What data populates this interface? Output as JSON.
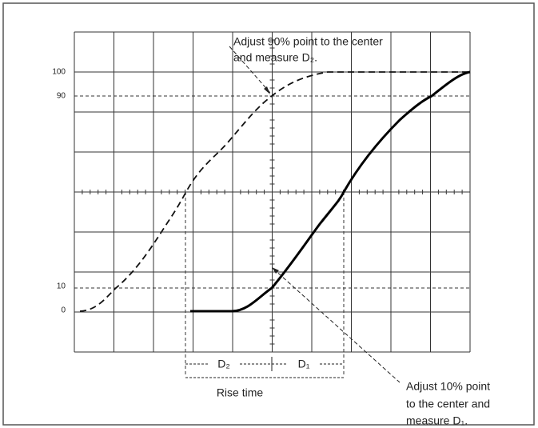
{
  "axis_labels": [
    "100",
    "90",
    "10",
    "0"
  ],
  "annotation_top": [
    "Adjust 90% point to the center",
    "and measure D₂."
  ],
  "annotation_bottom": [
    "Adjust 10% point",
    "to the center and",
    "measure D₁."
  ],
  "d2_label": "D₂",
  "d1_label": "D₁",
  "rise_time_label": "Rise time"
}
